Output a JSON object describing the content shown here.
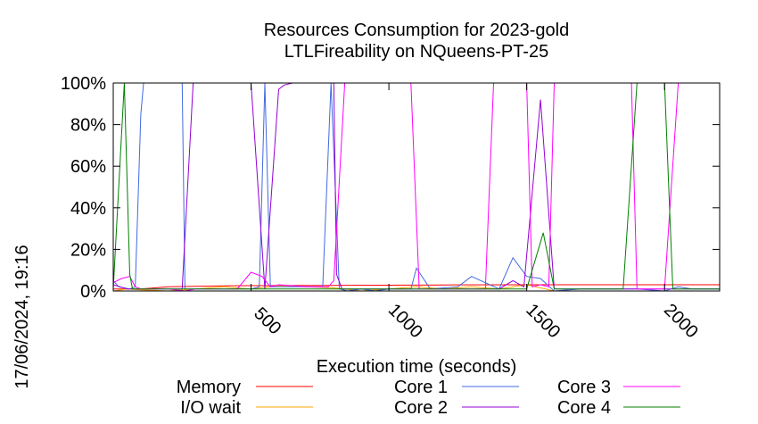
{
  "chart_data": {
    "type": "line",
    "title": "Resources Consumption for 2023-gold",
    "subtitle": "LTLFireability on NQueens-PT-25",
    "xlabel": "Execution time (seconds)",
    "ylabel": "",
    "side_label": "17/06/2024, 19:16",
    "xlim": [
      0,
      2200
    ],
    "ylim": [
      0,
      100
    ],
    "x_ticks": [
      500,
      1000,
      1500,
      2000
    ],
    "y_ticks": [
      0,
      20,
      40,
      60,
      80,
      100
    ],
    "y_tick_labels": [
      "0%",
      "20%",
      "40%",
      "60%",
      "80%",
      "100%"
    ],
    "grid": false,
    "legend_position": "bottom",
    "series": [
      {
        "name": "Memory",
        "color": "#ff0000",
        "points": [
          [
            0,
            1
          ],
          [
            100,
            1
          ],
          [
            200,
            2
          ],
          [
            400,
            2.5
          ],
          [
            600,
            2.6
          ],
          [
            800,
            2.7
          ],
          [
            1000,
            2.8
          ],
          [
            1200,
            2.9
          ],
          [
            1500,
            3
          ],
          [
            1700,
            3
          ],
          [
            2000,
            3
          ],
          [
            2200,
            3
          ]
        ]
      },
      {
        "name": "I/O wait",
        "color": "#ffa500",
        "points": [
          [
            0,
            0
          ],
          [
            50,
            1
          ],
          [
            100,
            0.5
          ],
          [
            200,
            0
          ],
          [
            300,
            1
          ],
          [
            400,
            2
          ],
          [
            500,
            1
          ],
          [
            600,
            2.5
          ],
          [
            700,
            2
          ],
          [
            800,
            1.5
          ],
          [
            900,
            0
          ],
          [
            1000,
            1
          ],
          [
            1100,
            2
          ],
          [
            1200,
            1
          ],
          [
            1300,
            2
          ],
          [
            1400,
            1
          ],
          [
            1500,
            3
          ],
          [
            1600,
            0
          ],
          [
            1700,
            0
          ],
          [
            1800,
            0
          ],
          [
            1900,
            0
          ],
          [
            2000,
            0
          ],
          [
            2200,
            0
          ]
        ]
      },
      {
        "name": "Core 1",
        "color": "#4169e1",
        "points": [
          [
            0,
            5
          ],
          [
            20,
            2
          ],
          [
            60,
            1
          ],
          [
            80,
            2
          ],
          [
            100,
            85
          ],
          [
            110,
            100
          ],
          [
            250,
            100
          ],
          [
            260,
            1
          ],
          [
            400,
            1
          ],
          [
            500,
            1
          ],
          [
            530,
            2
          ],
          [
            550,
            100
          ],
          [
            570,
            2
          ],
          [
            700,
            2
          ],
          [
            760,
            2
          ],
          [
            790,
            100
          ],
          [
            820,
            1
          ],
          [
            850,
            0
          ],
          [
            900,
            1
          ],
          [
            950,
            0
          ],
          [
            1000,
            1
          ],
          [
            1080,
            1
          ],
          [
            1100,
            11
          ],
          [
            1150,
            1
          ],
          [
            1250,
            2
          ],
          [
            1300,
            7
          ],
          [
            1400,
            1
          ],
          [
            1450,
            16
          ],
          [
            1500,
            7
          ],
          [
            1550,
            6
          ],
          [
            1600,
            0
          ],
          [
            1700,
            1
          ],
          [
            1800,
            1
          ],
          [
            1900,
            1
          ],
          [
            2000,
            0
          ],
          [
            2050,
            2
          ],
          [
            2100,
            1
          ],
          [
            2200,
            1
          ]
        ]
      },
      {
        "name": "Core 2",
        "color": "#9400d3",
        "points": [
          [
            0,
            3
          ],
          [
            50,
            1
          ],
          [
            100,
            1
          ],
          [
            200,
            1
          ],
          [
            250,
            1
          ],
          [
            290,
            100
          ],
          [
            500,
            100
          ],
          [
            550,
            1
          ],
          [
            600,
            97
          ],
          [
            620,
            99
          ],
          [
            650,
            100
          ],
          [
            800,
            100
          ],
          [
            810,
            8
          ],
          [
            830,
            1
          ],
          [
            900,
            1
          ],
          [
            1000,
            1
          ],
          [
            1100,
            1
          ],
          [
            1200,
            1
          ],
          [
            1300,
            1
          ],
          [
            1400,
            1
          ],
          [
            1450,
            5
          ],
          [
            1490,
            2
          ],
          [
            1550,
            92
          ],
          [
            1600,
            1
          ],
          [
            1700,
            1
          ],
          [
            1800,
            1
          ],
          [
            1900,
            1
          ],
          [
            2000,
            1
          ],
          [
            2100,
            1
          ],
          [
            2200,
            1
          ]
        ]
      },
      {
        "name": "Core 3",
        "color": "#ff00ff",
        "points": [
          [
            0,
            4
          ],
          [
            30,
            6
          ],
          [
            60,
            7
          ],
          [
            80,
            2
          ],
          [
            100,
            1
          ],
          [
            200,
            1
          ],
          [
            260,
            0
          ],
          [
            300,
            1
          ],
          [
            450,
            1
          ],
          [
            500,
            9
          ],
          [
            540,
            7
          ],
          [
            570,
            2
          ],
          [
            600,
            3
          ],
          [
            700,
            2
          ],
          [
            780,
            2
          ],
          [
            800,
            5
          ],
          [
            840,
            100
          ],
          [
            1000,
            100
          ],
          [
            1080,
            100
          ],
          [
            1110,
            1
          ],
          [
            1300,
            1
          ],
          [
            1350,
            1
          ],
          [
            1380,
            100
          ],
          [
            1500,
            100
          ],
          [
            1520,
            2
          ],
          [
            1550,
            3
          ],
          [
            1580,
            2
          ],
          [
            1600,
            100
          ],
          [
            1880,
            100
          ],
          [
            1900,
            1
          ],
          [
            1950,
            1
          ],
          [
            2000,
            1
          ],
          [
            2050,
            100
          ],
          [
            2200,
            100
          ]
        ]
      },
      {
        "name": "Core 4",
        "color": "#008000",
        "points": [
          [
            0,
            1
          ],
          [
            40,
            100
          ],
          [
            60,
            8
          ],
          [
            70,
            1
          ],
          [
            100,
            1
          ],
          [
            200,
            1
          ],
          [
            300,
            1
          ],
          [
            400,
            1
          ],
          [
            500,
            1
          ],
          [
            600,
            1
          ],
          [
            700,
            1
          ],
          [
            800,
            1
          ],
          [
            900,
            1
          ],
          [
            1000,
            1
          ],
          [
            1100,
            1
          ],
          [
            1200,
            1
          ],
          [
            1300,
            1
          ],
          [
            1400,
            1
          ],
          [
            1500,
            1
          ],
          [
            1560,
            28
          ],
          [
            1600,
            1
          ],
          [
            1700,
            1
          ],
          [
            1800,
            1
          ],
          [
            1850,
            1
          ],
          [
            1900,
            100
          ],
          [
            2000,
            100
          ],
          [
            2030,
            1
          ],
          [
            2100,
            1
          ],
          [
            2200,
            1
          ]
        ]
      }
    ]
  }
}
